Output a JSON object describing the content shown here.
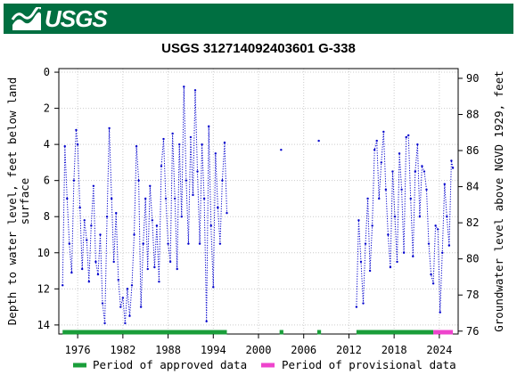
{
  "header": {
    "logo_text": "USGS",
    "brand_color": "#006F41"
  },
  "chart_data": {
    "type": "scatter",
    "title": "USGS 312714092403601 G-338",
    "ylabel_left": "Depth to water level, feet below land surface",
    "ylabel_left_lines": [
      "Depth to water level, feet below land",
      "surface"
    ],
    "ylabel_right": "Groundwater level above NGVD 1929, feet",
    "xlim": [
      1973.5,
      2026.5
    ],
    "ylim_left": [
      14.5,
      -0.2
    ],
    "ylim_right": [
      75.84,
      90.54
    ],
    "xticks": [
      1976,
      1982,
      1988,
      1994,
      2000,
      2006,
      2012,
      2018,
      2024
    ],
    "yticks_left": [
      0,
      2,
      4,
      6,
      8,
      10,
      12,
      14
    ],
    "yticks_right": [
      76,
      78,
      80,
      82,
      84,
      86,
      88,
      90
    ],
    "series_color": "#0000CC",
    "series": [
      {
        "name": "Depth to water level",
        "segments": [
          [
            [
              1974.0,
              11.8
            ],
            [
              1974.3,
              4.1
            ],
            [
              1974.6,
              7.0
            ],
            [
              1974.9,
              9.5
            ],
            [
              1975.2,
              11.1
            ],
            [
              1975.5,
              6.0
            ],
            [
              1975.8,
              3.2
            ],
            [
              1976.0,
              4.0
            ],
            [
              1976.3,
              7.5
            ],
            [
              1976.6,
              10.9
            ],
            [
              1976.9,
              8.2
            ],
            [
              1977.2,
              9.3
            ],
            [
              1977.5,
              11.6
            ],
            [
              1977.8,
              8.5
            ],
            [
              1978.1,
              6.3
            ],
            [
              1978.4,
              10.5
            ],
            [
              1978.7,
              11.2
            ],
            [
              1979.0,
              9.0
            ],
            [
              1979.3,
              12.8
            ],
            [
              1979.6,
              13.9
            ],
            [
              1979.9,
              8.0
            ],
            [
              1980.2,
              3.1
            ],
            [
              1980.5,
              7.0
            ],
            [
              1980.8,
              10.5
            ],
            [
              1981.1,
              7.8
            ],
            [
              1981.4,
              11.5
            ],
            [
              1981.7,
              13.0
            ],
            [
              1982.0,
              12.5
            ],
            [
              1982.3,
              13.9
            ],
            [
              1982.6,
              12.0
            ],
            [
              1982.9,
              13.5
            ],
            [
              1983.2,
              11.8
            ],
            [
              1983.5,
              9.0
            ],
            [
              1983.8,
              4.1
            ],
            [
              1984.1,
              6.0
            ],
            [
              1984.4,
              13.0
            ],
            [
              1984.7,
              9.5
            ],
            [
              1985.0,
              7.0
            ],
            [
              1985.3,
              10.9
            ],
            [
              1985.6,
              6.3
            ],
            [
              1985.9,
              8.2
            ],
            [
              1986.2,
              10.8
            ],
            [
              1986.5,
              8.5
            ],
            [
              1986.8,
              11.6
            ],
            [
              1987.1,
              5.2
            ],
            [
              1987.4,
              3.7
            ],
            [
              1987.7,
              7.0
            ],
            [
              1988.0,
              9.5
            ],
            [
              1988.3,
              10.5
            ],
            [
              1988.6,
              3.4
            ],
            [
              1988.9,
              7.0
            ],
            [
              1989.2,
              10.9
            ],
            [
              1989.5,
              4.0
            ],
            [
              1989.8,
              8.0
            ],
            [
              1990.1,
              0.8
            ],
            [
              1990.4,
              6.0
            ],
            [
              1990.7,
              9.5
            ],
            [
              1991.0,
              3.6
            ],
            [
              1991.3,
              6.8
            ],
            [
              1991.6,
              1.0
            ],
            [
              1991.9,
              5.5
            ],
            [
              1992.2,
              9.5
            ],
            [
              1992.5,
              4.0
            ],
            [
              1992.8,
              7.0
            ],
            [
              1993.1,
              13.8
            ],
            [
              1993.4,
              3.0
            ],
            [
              1993.7,
              8.5
            ],
            [
              1994.0,
              11.9
            ],
            [
              1994.3,
              4.5
            ],
            [
              1994.6,
              7.5
            ],
            [
              1994.9,
              9.5
            ],
            [
              1995.2,
              6.0
            ],
            [
              1995.5,
              3.9
            ],
            [
              1995.8,
              7.8
            ]
          ],
          [
            [
              2003.0,
              4.3
            ]
          ],
          [
            [
              2008.0,
              3.8
            ]
          ],
          [
            [
              2013.0,
              13.0
            ],
            [
              2013.3,
              8.2
            ],
            [
              2013.6,
              10.5
            ],
            [
              2013.9,
              12.8
            ],
            [
              2014.2,
              9.5
            ],
            [
              2014.5,
              7.0
            ],
            [
              2014.8,
              11.0
            ],
            [
              2015.1,
              8.5
            ],
            [
              2015.4,
              4.3
            ],
            [
              2015.7,
              3.8
            ],
            [
              2016.0,
              7.0
            ],
            [
              2016.3,
              5.0
            ],
            [
              2016.6,
              3.3
            ],
            [
              2016.9,
              6.5
            ],
            [
              2017.2,
              9.0
            ],
            [
              2017.5,
              10.8
            ],
            [
              2017.8,
              5.5
            ],
            [
              2018.1,
              8.0
            ],
            [
              2018.4,
              10.5
            ],
            [
              2018.7,
              4.5
            ],
            [
              2019.0,
              6.5
            ],
            [
              2019.3,
              10.0
            ],
            [
              2019.6,
              3.6
            ],
            [
              2019.9,
              3.5
            ],
            [
              2020.2,
              7.0
            ],
            [
              2020.5,
              10.2
            ],
            [
              2020.8,
              5.5
            ],
            [
              2021.1,
              4.0
            ],
            [
              2021.4,
              8.0
            ],
            [
              2021.7,
              5.2
            ],
            [
              2022.0,
              5.5
            ],
            [
              2022.3,
              6.5
            ],
            [
              2022.6,
              9.5
            ],
            [
              2022.9,
              11.2
            ],
            [
              2023.2,
              11.7
            ],
            [
              2023.5,
              8.5
            ],
            [
              2023.8,
              8.7
            ],
            [
              2024.1,
              13.3
            ],
            [
              2024.4,
              10.0
            ],
            [
              2024.7,
              6.2
            ],
            [
              2025.0,
              8.0
            ],
            [
              2025.3,
              9.6
            ],
            [
              2025.6,
              4.9
            ],
            [
              2025.8,
              5.3
            ]
          ]
        ]
      }
    ],
    "periods": [
      {
        "label": "Period of approved data",
        "color": "#1A9E3A",
        "ranges": [
          [
            1974.0,
            1995.8
          ],
          [
            2002.8,
            2003.3
          ],
          [
            2007.8,
            2008.3
          ],
          [
            2013.0,
            2023.2
          ]
        ]
      },
      {
        "label": "Period of provisional data",
        "color": "#EE44CC",
        "ranges": [
          [
            2023.2,
            2025.8
          ]
        ]
      }
    ]
  }
}
